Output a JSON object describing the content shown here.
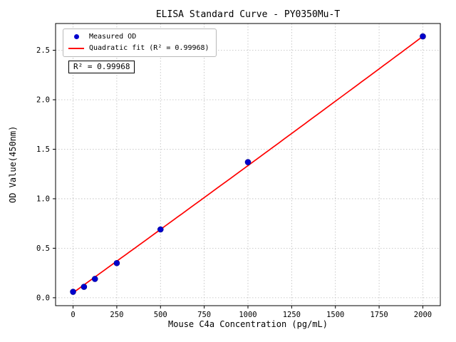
{
  "chart_data": {
    "type": "scatter",
    "title": "ELISA Standard Curve - PY0350Mu-T",
    "xlabel": "Mouse C4a Concentration (pg/mL)",
    "ylabel": "OD Value(450nm)",
    "xlim": [
      -100,
      2100
    ],
    "ylim": [
      -0.08,
      2.77
    ],
    "xticks": [
      0,
      250,
      500,
      750,
      1000,
      1250,
      1500,
      1750,
      2000
    ],
    "yticks": [
      0.0,
      0.5,
      1.0,
      1.5,
      2.0,
      2.5
    ],
    "grid": "dotted",
    "legend_position": "upper left",
    "annotation": "R² = 0.99968",
    "series": [
      {
        "name": "Measured OD",
        "type": "scatter",
        "color": "#0000cd",
        "x": [
          0,
          62.5,
          125,
          250,
          500,
          1000,
          2000
        ],
        "y": [
          0.06,
          0.11,
          0.19,
          0.35,
          0.69,
          1.37,
          2.64
        ]
      },
      {
        "name": "Quadratic fit (R² = 0.99968)",
        "type": "line",
        "color": "#ff0000",
        "fit": {
          "a": 1e-08,
          "b": 0.001275,
          "c": 0.05
        },
        "x_range": [
          0,
          2000
        ]
      }
    ]
  }
}
